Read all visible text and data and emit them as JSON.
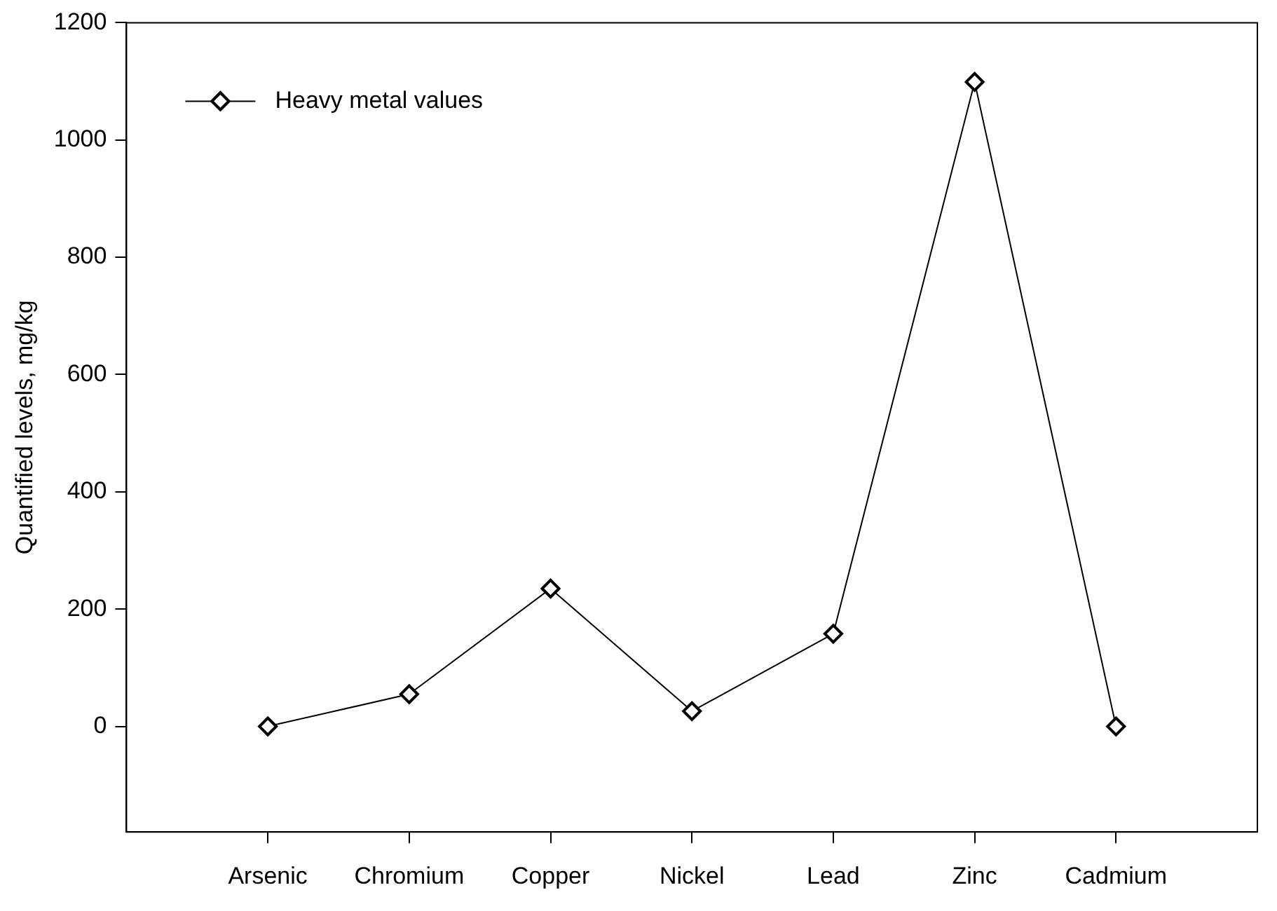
{
  "chart_data": {
    "type": "line",
    "ylabel": "Quantified levels, mg/kg",
    "categories": [
      "Arsenic",
      "Chromium",
      "Copper",
      "Nickel",
      "Lead",
      "Zinc",
      "Cadmium"
    ],
    "series": [
      {
        "name": "Heavy metal values",
        "color": "#000000",
        "values": [
          0,
          55,
          235,
          26,
          158,
          1099,
          0
        ]
      }
    ],
    "ylim": [
      -180,
      1200
    ],
    "yticks": [
      0,
      200,
      400,
      600,
      800,
      1000,
      1200
    ],
    "grid": false,
    "legend": "top left",
    "marker": "diamond",
    "line_style": "solid"
  }
}
